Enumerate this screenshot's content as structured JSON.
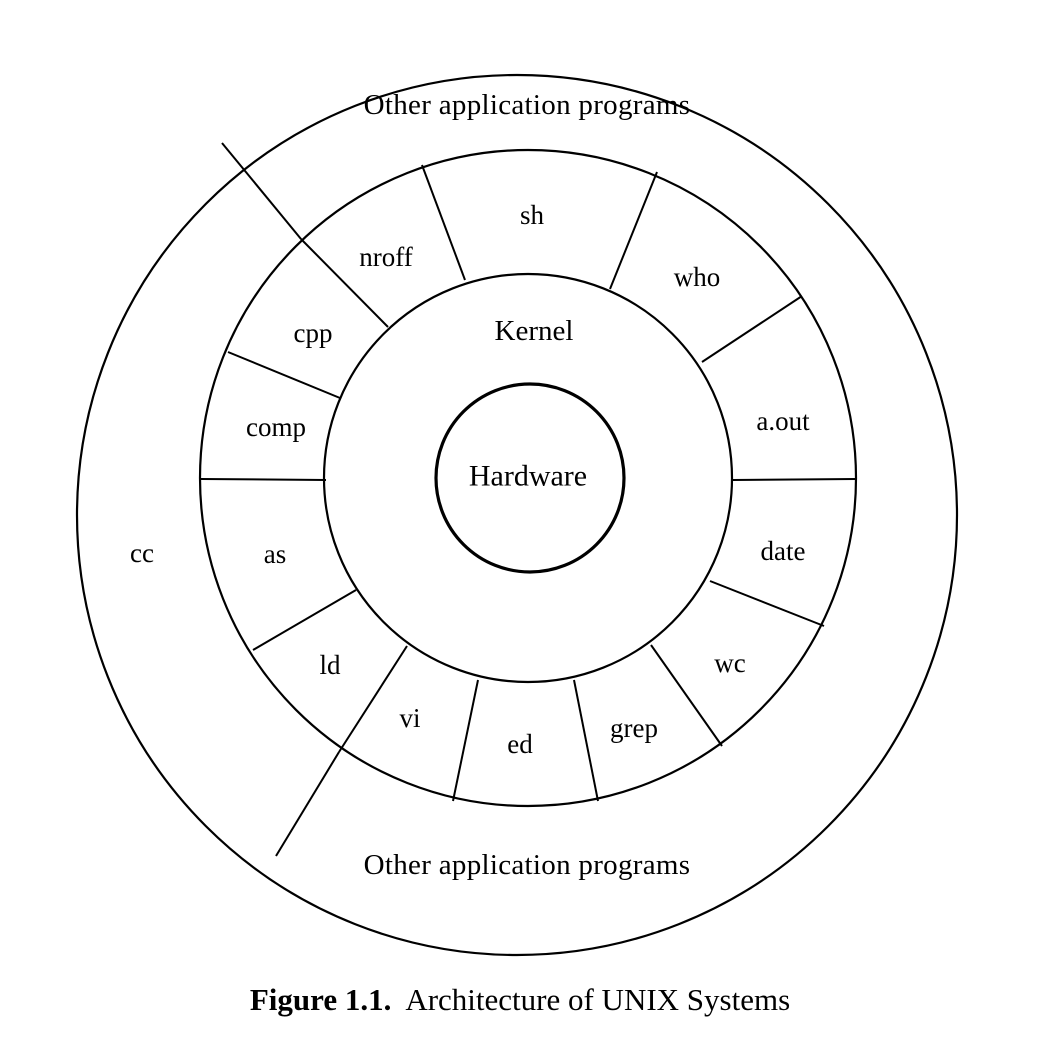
{
  "diagram": {
    "layers": {
      "hardware": "Hardware",
      "kernel": "Kernel",
      "app_top": "Other application programs",
      "app_bottom": "Other application programs",
      "cc": "cc"
    },
    "utilities": [
      "sh",
      "who",
      "a.out",
      "date",
      "wc",
      "grep",
      "ed",
      "vi",
      "ld",
      "as",
      "comp",
      "cpp",
      "nroff"
    ]
  },
  "caption": {
    "label": "Figure 1.1.",
    "text": "Architecture of UNIX Systems"
  }
}
